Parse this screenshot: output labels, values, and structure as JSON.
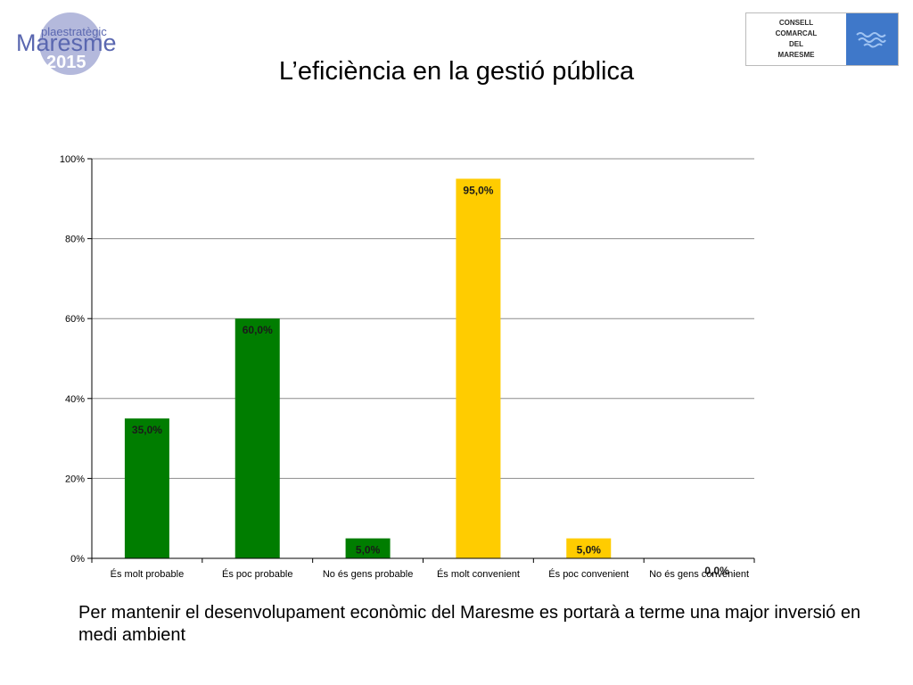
{
  "header": {
    "logo_left": {
      "line1": "plaestratègic",
      "line2": "Maresme",
      "line3": "2015"
    },
    "logo_right": {
      "lines": [
        "CONSELL",
        "COMARCAL",
        "DEL",
        "MARESME"
      ]
    },
    "title": "L’eficiència en la gestió pública"
  },
  "chart_data": {
    "type": "bar",
    "categories": [
      "És molt probable",
      "És poc probable",
      "No és gens probable",
      "És molt convenient",
      "És poc convenient",
      "No és gens convenient"
    ],
    "values": [
      35.0,
      60.0,
      5.0,
      95.0,
      5.0,
      0.0
    ],
    "data_labels": [
      "35,0%",
      "60,0%",
      "5,0%",
      "95,0%",
      "5,0%",
      "0,0%"
    ],
    "bar_colors": [
      "#007d00",
      "#007d00",
      "#007d00",
      "#ffcc00",
      "#ffcc00",
      "#ffcc00"
    ],
    "ylim": [
      0,
      100
    ],
    "yticks": [
      0,
      20,
      40,
      60,
      80,
      100
    ],
    "ytick_labels": [
      "0%",
      "20%",
      "40%",
      "60%",
      "80%",
      "100%"
    ],
    "grid": true,
    "legend": false
  },
  "footer": {
    "text": "Per mantenir el desenvolupament econòmic del Maresme es portarà a terme una major inversió en medi ambient"
  }
}
